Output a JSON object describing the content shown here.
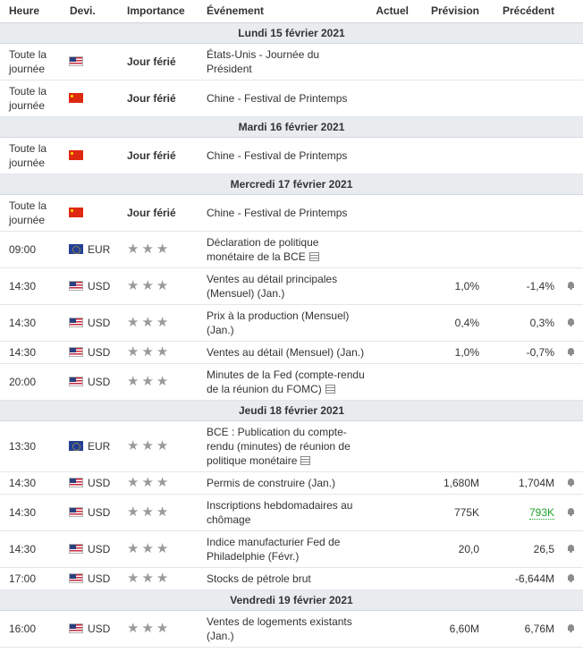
{
  "headers": {
    "time": "Heure",
    "currency": "Devi.",
    "importance": "Importance",
    "event": "Événement",
    "actual": "Actuel",
    "forecast": "Prévision",
    "previous": "Précédent"
  },
  "days": [
    {
      "label": "Lundi 15 février 2021",
      "events": [
        {
          "time": "Toute la journée",
          "flag": "us",
          "currency": "",
          "importance": "Jour férié",
          "event": "États-Unis - Journée du Président",
          "actual": "",
          "forecast": "",
          "previous": "",
          "previous_style": "",
          "doc": false,
          "alert": false
        },
        {
          "time": "Toute la journée",
          "flag": "cn",
          "currency": "",
          "importance": "Jour férié",
          "event": "Chine - Festival de Printemps",
          "actual": "",
          "forecast": "",
          "previous": "",
          "previous_style": "",
          "doc": false,
          "alert": false
        }
      ]
    },
    {
      "label": "Mardi 16 février 2021",
      "events": [
        {
          "time": "Toute la journée",
          "flag": "cn",
          "currency": "",
          "importance": "Jour férié",
          "event": "Chine - Festival de Printemps",
          "actual": "",
          "forecast": "",
          "previous": "",
          "previous_style": "",
          "doc": false,
          "alert": false
        }
      ]
    },
    {
      "label": "Mercredi 17 février 2021",
      "events": [
        {
          "time": "Toute la journée",
          "flag": "cn",
          "currency": "",
          "importance": "Jour férié",
          "event": "Chine - Festival de Printemps",
          "actual": "",
          "forecast": "",
          "previous": "",
          "previous_style": "",
          "doc": false,
          "alert": false
        },
        {
          "time": "09:00",
          "flag": "eu",
          "currency": "EUR",
          "importance": "★★★",
          "event": "Déclaration de politique monétaire de la BCE",
          "actual": "",
          "forecast": "",
          "previous": "",
          "previous_style": "",
          "doc": true,
          "alert": false
        },
        {
          "time": "14:30",
          "flag": "us",
          "currency": "USD",
          "importance": "★★★",
          "event": "Ventes au détail principales (Mensuel) (Jan.)",
          "actual": "",
          "forecast": "1,0%",
          "previous": "-1,4%",
          "previous_style": "",
          "doc": false,
          "alert": true
        },
        {
          "time": "14:30",
          "flag": "us",
          "currency": "USD",
          "importance": "★★★",
          "event": "Prix à la production (Mensuel) (Jan.)",
          "actual": "",
          "forecast": "0,4%",
          "previous": "0,3%",
          "previous_style": "",
          "doc": false,
          "alert": true
        },
        {
          "time": "14:30",
          "flag": "us",
          "currency": "USD",
          "importance": "★★★",
          "event": "Ventes au détail (Mensuel) (Jan.)",
          "actual": "",
          "forecast": "1,0%",
          "previous": "-0,7%",
          "previous_style": "",
          "doc": false,
          "alert": true
        },
        {
          "time": "20:00",
          "flag": "us",
          "currency": "USD",
          "importance": "★★★",
          "event": "Minutes de la Fed (compte-rendu de la réunion du FOMC)",
          "actual": "",
          "forecast": "",
          "previous": "",
          "previous_style": "",
          "doc": true,
          "alert": false
        }
      ]
    },
    {
      "label": "Jeudi 18 février 2021",
      "events": [
        {
          "time": "13:30",
          "flag": "eu",
          "currency": "EUR",
          "importance": "★★★",
          "event": "BCE : Publication du compte-rendu (minutes) de réunion de politique monétaire",
          "actual": "",
          "forecast": "",
          "previous": "",
          "previous_style": "",
          "doc": true,
          "alert": false
        },
        {
          "time": "14:30",
          "flag": "us",
          "currency": "USD",
          "importance": "★★★",
          "event": "Permis de construire (Jan.)",
          "actual": "",
          "forecast": "1,680M",
          "previous": "1,704M",
          "previous_style": "",
          "doc": false,
          "alert": true
        },
        {
          "time": "14:30",
          "flag": "us",
          "currency": "USD",
          "importance": "★★★",
          "event": "Inscriptions hebdomadaires au chômage",
          "actual": "",
          "forecast": "775K",
          "previous": "793K",
          "previous_style": "green",
          "doc": false,
          "alert": true
        },
        {
          "time": "14:30",
          "flag": "us",
          "currency": "USD",
          "importance": "★★★",
          "event": "Indice manufacturier Fed de Philadelphie (Févr.)",
          "actual": "",
          "forecast": "20,0",
          "previous": "26,5",
          "previous_style": "",
          "doc": false,
          "alert": true
        },
        {
          "time": "17:00",
          "flag": "us",
          "currency": "USD",
          "importance": "★★★",
          "event": "Stocks de pétrole brut",
          "actual": "",
          "forecast": "",
          "previous": "-6,644M",
          "previous_style": "",
          "doc": false,
          "alert": true
        }
      ]
    },
    {
      "label": "Vendredi 19 février 2021",
      "events": [
        {
          "time": "16:00",
          "flag": "us",
          "currency": "USD",
          "importance": "★★★",
          "event": "Ventes de logements existants (Jan.)",
          "actual": "",
          "forecast": "6,60M",
          "previous": "6,76M",
          "previous_style": "",
          "doc": false,
          "alert": true
        }
      ]
    }
  ],
  "icons": {
    "document": "document-icon",
    "alert": "bell-icon"
  }
}
